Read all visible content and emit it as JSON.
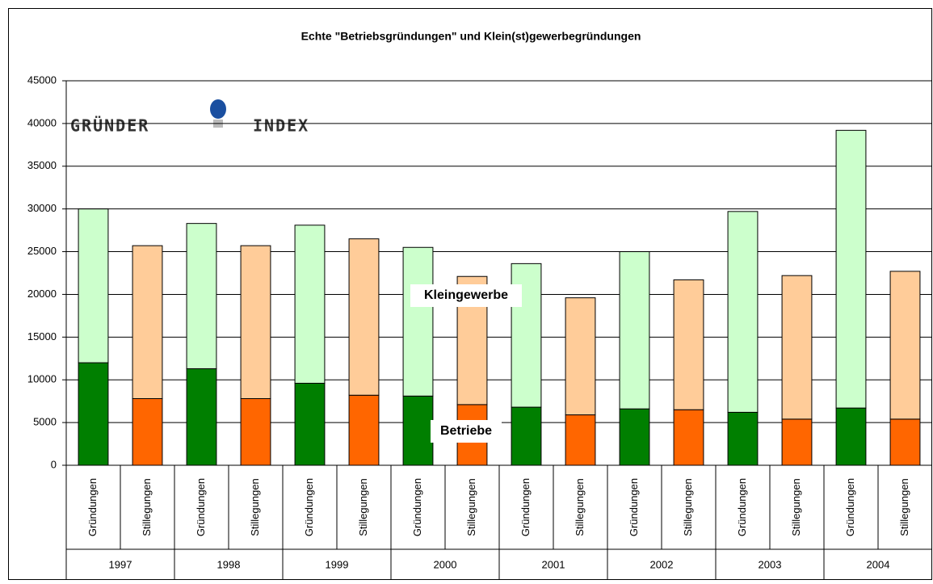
{
  "chart_data": {
    "type": "stacked_bar",
    "title": "Echte \"Betriebsgründungen\" und Klein(st)gewerbegründungen",
    "logo": [
      "GRÜNDER",
      "INDEX"
    ],
    "categories": [
      "Gründungen",
      "Stillegungen",
      "Gründungen",
      "Stillegungen",
      "Gründungen",
      "Stillegungen",
      "Gründungen",
      "Stillegungen",
      "Gründungen",
      "Stillegungen",
      "Gründungen",
      "Stillegungen",
      "Gründungen",
      "Stillegungen",
      "Gründungen",
      "Stillegungen"
    ],
    "groups": [
      "1997",
      "1998",
      "1999",
      "2000",
      "2001",
      "2002",
      "2003",
      "2004"
    ],
    "series": [
      {
        "name": "Betriebe",
        "colors": [
          "#007f00",
          "#ff6600"
        ],
        "values": [
          12000,
          7800,
          11300,
          7800,
          9600,
          8200,
          8100,
          7100,
          6800,
          5900,
          6600,
          6500,
          6200,
          5400,
          6700,
          5400
        ]
      },
      {
        "name": "Kleingewerbe",
        "colors": [
          "#ccffcc",
          "#ffcc99"
        ],
        "values": [
          18000,
          17900,
          17000,
          17900,
          18500,
          18300,
          17400,
          15000,
          16800,
          13700,
          18400,
          15200,
          23500,
          16800,
          32500,
          17300
        ]
      }
    ],
    "ylim": [
      0,
      45000
    ],
    "yticks": [
      0,
      5000,
      10000,
      15000,
      20000,
      25000,
      30000,
      35000,
      40000,
      45000
    ],
    "grid": true
  }
}
